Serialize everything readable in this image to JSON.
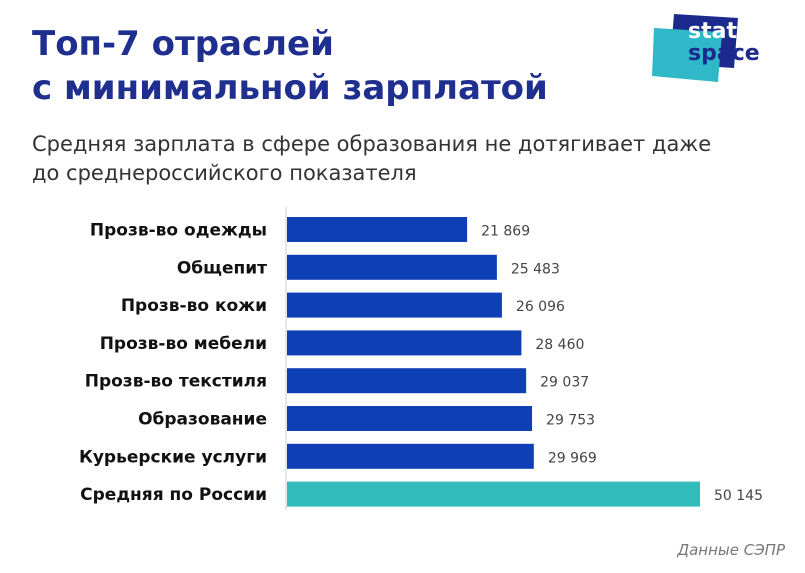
{
  "title_lines": [
    "Топ-7 отраслей",
    "с минимальной зарплатой"
  ],
  "subtitle_lines": [
    "Средняя зарплата в сфере образования не дотягивает даже",
    "до среднероссийского показателя"
  ],
  "logo": {
    "line1": "stat",
    "line2": "space",
    "colors": {
      "back": "#1b2a8c",
      "front": "#2fb8c8"
    }
  },
  "source": "Данные СЭПР",
  "colors": {
    "bar": "#0f3fb5",
    "highlight": "#33bcbc",
    "title": "#1f2f8f",
    "axis": "#cccccc"
  },
  "chart_data": {
    "type": "bar",
    "orientation": "horizontal",
    "categories": [
      "Прозв-во одежды",
      "Общепит",
      "Прозв-во кожи",
      "Прозв-во мебели",
      "Прозв-во текстиля",
      "Образование",
      "Курьерские услуги",
      "Средняя по России"
    ],
    "values": [
      21869,
      25483,
      26096,
      28460,
      29037,
      29753,
      29969,
      50145
    ],
    "value_labels": [
      "21 869",
      "25 483",
      "26 096",
      "28 460",
      "29 037",
      "29 753",
      "29 969",
      "50 145"
    ],
    "highlight_index": 7,
    "xlim": [
      0,
      50145
    ]
  }
}
